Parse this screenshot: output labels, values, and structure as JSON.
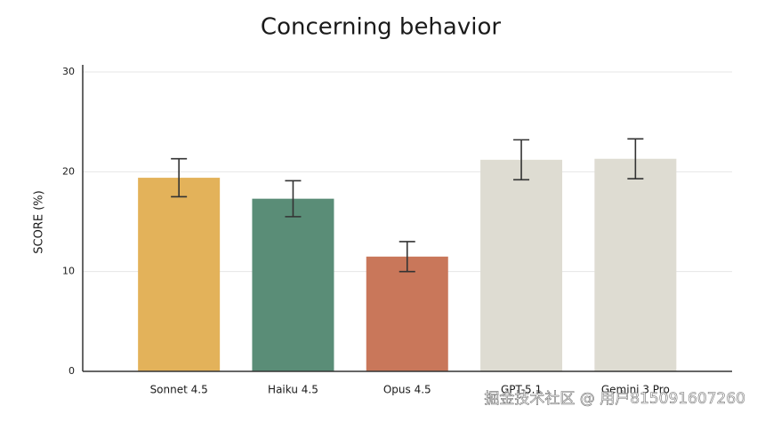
{
  "chart_data": {
    "type": "bar",
    "title": "Concerning behavior",
    "y_label": "SCORE (%)",
    "categories": [
      "Sonnet 4.5",
      "Haiku 4.5",
      "Opus 4.5",
      "GPT-5.1",
      "Gemini 3 Pro"
    ],
    "values": [
      19.4,
      17.3,
      11.5,
      21.2,
      21.3
    ],
    "errors": [
      1.9,
      1.8,
      1.5,
      2.0,
      2.0
    ],
    "colors": [
      "#e3b25a",
      "#5a8d77",
      "#c9775a",
      "#dedcd2",
      "#dedcd2"
    ],
    "ylim": [
      0,
      30
    ],
    "yticks": [
      0,
      10,
      20,
      30
    ],
    "grid": true,
    "watermark": "掘金技术社区 @ 用户815091607260"
  }
}
